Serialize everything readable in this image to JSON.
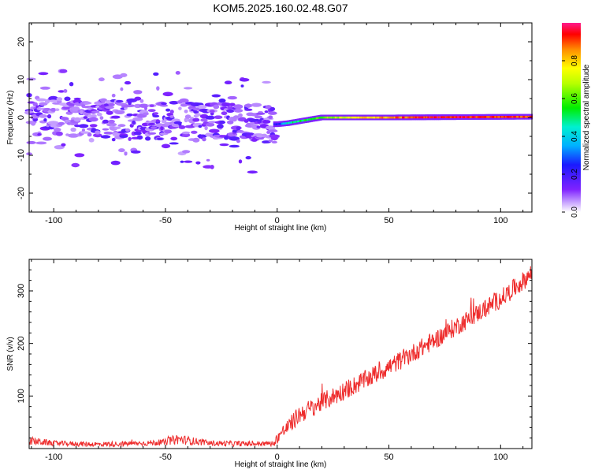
{
  "figure_title": "KOM5.2025.160.02.48.G07",
  "chart_data": [
    {
      "type": "heatmap",
      "xlabel": "Height of straight line (km)",
      "ylabel": "Frequency (Hz)",
      "xlim": [
        -111,
        114
      ],
      "ylim": [
        -25,
        25
      ],
      "xticks": [
        -100,
        -50,
        0,
        50,
        100
      ],
      "yticks": [
        -20,
        -10,
        0,
        10,
        20
      ],
      "grid": false,
      "colorbar": {
        "label": "Normalized spectral amplitude",
        "range": [
          0,
          1
        ],
        "ticks": [
          "0.0",
          "0.2",
          "0.4",
          "0.6",
          "0.8"
        ]
      },
      "signal": [
        {
          "x": -110,
          "freq": 0.5
        },
        {
          "x": 0,
          "freq": -1.8
        },
        {
          "x": 5,
          "freq": -1.5
        },
        {
          "x": 20,
          "freq": 0.0
        },
        {
          "x": 50,
          "freq": 0.0
        },
        {
          "x": 114,
          "freq": 0.2
        }
      ],
      "amplitude_profile": [
        {
          "x": -110,
          "amp": 0.03
        },
        {
          "x": -10,
          "amp": 0.08
        },
        {
          "x": 0,
          "amp": 0.2
        },
        {
          "x": 5,
          "amp": 0.45
        },
        {
          "x": 20,
          "amp": 0.6
        },
        {
          "x": 40,
          "amp": 0.8
        },
        {
          "x": 70,
          "amp": 0.95
        },
        {
          "x": 114,
          "amp": 0.9
        }
      ]
    },
    {
      "type": "line",
      "xlabel": "Height of straight line (km)",
      "ylabel": "SNR (v/v)",
      "xlim": [
        -111,
        114
      ],
      "ylim": [
        0,
        360
      ],
      "xticks": [
        -100,
        -50,
        0,
        50,
        100
      ],
      "yticks": [
        100,
        200,
        300
      ],
      "grid": false,
      "series": [
        {
          "color": "#ee2c2c",
          "x": [
            -111,
            -100,
            -80,
            -60,
            -50,
            -45,
            -30,
            -10,
            -1,
            0,
            5,
            10,
            20,
            30,
            40,
            50,
            60,
            70,
            80,
            90,
            100,
            110,
            114
          ],
          "values": [
            15,
            10,
            8,
            10,
            12,
            18,
            10,
            9,
            10,
            22,
            42,
            65,
            88,
            110,
            132,
            155,
            180,
            205,
            232,
            258,
            285,
            318,
            335
          ],
          "noise": [
            8,
            5,
            5,
            5,
            6,
            10,
            5,
            5,
            5,
            12,
            15,
            18,
            18,
            18,
            18,
            18,
            18,
            18,
            18,
            18,
            18,
            18,
            18
          ]
        }
      ]
    }
  ]
}
